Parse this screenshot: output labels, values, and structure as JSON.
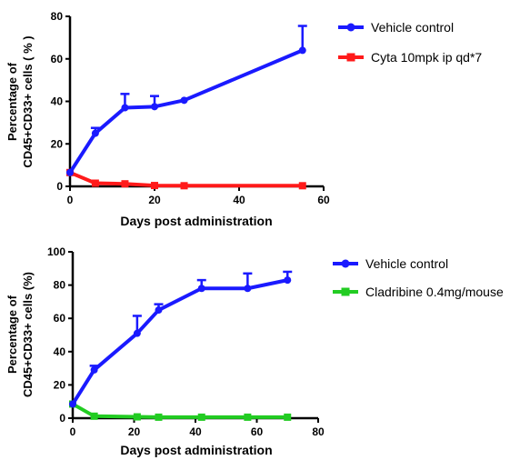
{
  "chart_data": [
    {
      "type": "line",
      "xlabel": "Days post administration",
      "ylabel_lines": [
        "Percentage of",
        "CD45+CD33+ cells ( % )"
      ],
      "xlim": [
        0,
        60
      ],
      "ylim": [
        0,
        80
      ],
      "xticks": [
        0,
        20,
        40,
        60
      ],
      "yticks": [
        0,
        20,
        40,
        60,
        80
      ],
      "legend_position": "right",
      "series": [
        {
          "name": "Vehicle control",
          "color": "#1a1aff",
          "marker": "circle",
          "x": [
            0,
            6,
            13,
            20,
            27,
            55
          ],
          "y": [
            6.5,
            25,
            37,
            37.5,
            40.5,
            64
          ],
          "err_upper": [
            0,
            2.5,
            6.5,
            5,
            0,
            11.5
          ]
        },
        {
          "name": "Cyta 10mpk ip qd*7",
          "color": "#ff1a1a",
          "marker": "square",
          "x": [
            0,
            6,
            13,
            20,
            27,
            55
          ],
          "y": [
            6.5,
            1.5,
            1.2,
            0.4,
            0.3,
            0.3
          ],
          "err_upper": [
            0,
            0,
            0,
            0,
            0,
            0
          ]
        }
      ]
    },
    {
      "type": "line",
      "xlabel": "Days post administration",
      "ylabel_lines": [
        "Percentage of",
        "CD45+CD33+ cells (%)"
      ],
      "xlim": [
        0,
        80
      ],
      "ylim": [
        0,
        100
      ],
      "xticks": [
        0,
        20,
        40,
        60,
        80
      ],
      "yticks": [
        0,
        20,
        40,
        60,
        80,
        100
      ],
      "legend_position": "right",
      "series": [
        {
          "name": "Vehicle control",
          "color": "#1a1aff",
          "marker": "circle",
          "x": [
            0,
            7,
            21,
            28,
            42,
            57,
            70
          ],
          "y": [
            8.5,
            29,
            51,
            65,
            78,
            78,
            83
          ],
          "err_upper": [
            0,
            2.5,
            10.5,
            3.5,
            5,
            9,
            5
          ]
        },
        {
          "name": "Cladribine 0.4mg/mouse",
          "color": "#22cc22",
          "marker": "square",
          "x": [
            0,
            7,
            21,
            28,
            42,
            57,
            70
          ],
          "y": [
            8.5,
            1.2,
            0.8,
            0.6,
            0.6,
            0.6,
            0.6
          ],
          "err_upper": [
            0,
            0,
            0,
            0,
            0,
            0,
            0
          ]
        }
      ]
    }
  ]
}
